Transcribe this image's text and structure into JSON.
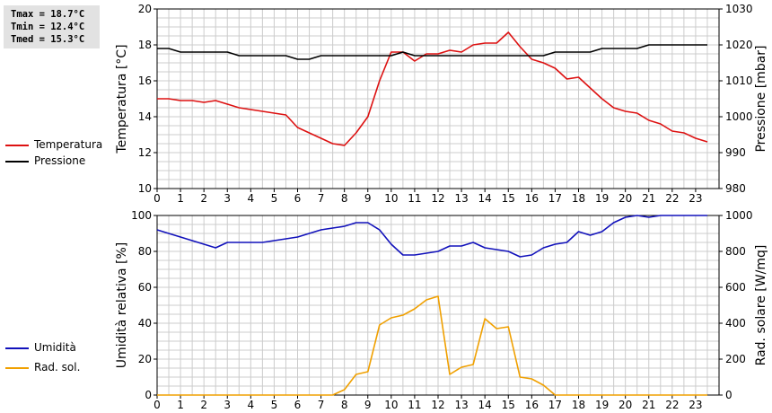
{
  "stats": {
    "tmax": "Tmax = 18.7°C",
    "tmin": "Tmin = 12.4°C",
    "tmed": "Tmed = 15.3°C"
  },
  "legends": {
    "temperatura": "Temperatura",
    "pressione": "Pressione",
    "umidita": "Umidità",
    "rad_sol": "Rad. sol."
  },
  "colors": {
    "temperatura": "#dd1111",
    "pressione": "#000000",
    "umidita": "#1111bb",
    "rad_sol": "#f0a000",
    "grid": "#cccccc"
  },
  "chart_data": [
    {
      "type": "line",
      "xlim": [
        0,
        24
      ],
      "x_ticks": [
        "0",
        "1",
        "2",
        "3",
        "4",
        "5",
        "6",
        "7",
        "8",
        "9",
        "10",
        "11",
        "12",
        "13",
        "14",
        "15",
        "16",
        "17",
        "18",
        "19",
        "20",
        "21",
        "22",
        "23"
      ],
      "ylabel": "Temperatura [°C]",
      "ylim": [
        10,
        20
      ],
      "y_ticks": [
        10,
        12,
        14,
        16,
        18,
        20
      ],
      "y2label": "Pressione [mbar]",
      "y2lim": [
        980,
        1030
      ],
      "y2_ticks": [
        980,
        990,
        1000,
        1010,
        1020,
        1030
      ],
      "grid": true,
      "series": [
        {
          "name": "Temperatura",
          "axis": "left",
          "points": [
            [
              0,
              15.0
            ],
            [
              0.5,
              15.0
            ],
            [
              1,
              14.9
            ],
            [
              1.5,
              14.9
            ],
            [
              2,
              14.8
            ],
            [
              2.5,
              14.9
            ],
            [
              3,
              14.7
            ],
            [
              3.5,
              14.5
            ],
            [
              4,
              14.4
            ],
            [
              4.5,
              14.3
            ],
            [
              5,
              14.2
            ],
            [
              5.5,
              14.1
            ],
            [
              6,
              13.4
            ],
            [
              6.5,
              13.1
            ],
            [
              7,
              12.8
            ],
            [
              7.5,
              12.5
            ],
            [
              8,
              12.4
            ],
            [
              8.5,
              13.1
            ],
            [
              9,
              14.0
            ],
            [
              9.5,
              16.0
            ],
            [
              10,
              17.6
            ],
            [
              10.5,
              17.6
            ],
            [
              11,
              17.1
            ],
            [
              11.5,
              17.5
            ],
            [
              12,
              17.5
            ],
            [
              12.5,
              17.7
            ],
            [
              13,
              17.6
            ],
            [
              13.5,
              18.0
            ],
            [
              14,
              18.1
            ],
            [
              14.5,
              18.1
            ],
            [
              15,
              18.7
            ],
            [
              15.5,
              17.9
            ],
            [
              16,
              17.2
            ],
            [
              16.5,
              17.0
            ],
            [
              17,
              16.7
            ],
            [
              17.5,
              16.1
            ],
            [
              18,
              16.2
            ],
            [
              18.5,
              15.6
            ],
            [
              19,
              15.0
            ],
            [
              19.5,
              14.5
            ],
            [
              20,
              14.3
            ],
            [
              20.5,
              14.2
            ],
            [
              21,
              13.8
            ],
            [
              21.5,
              13.6
            ],
            [
              22,
              13.2
            ],
            [
              22.5,
              13.1
            ],
            [
              23,
              12.8
            ],
            [
              23.5,
              12.6
            ]
          ]
        },
        {
          "name": "Pressione",
          "axis": "right",
          "points": [
            [
              0,
              1019
            ],
            [
              0.5,
              1019
            ],
            [
              1,
              1018
            ],
            [
              1.5,
              1018
            ],
            [
              2,
              1018
            ],
            [
              2.5,
              1018
            ],
            [
              3,
              1018
            ],
            [
              3.5,
              1017
            ],
            [
              4,
              1017
            ],
            [
              4.5,
              1017
            ],
            [
              5,
              1017
            ],
            [
              5.5,
              1017
            ],
            [
              6,
              1016
            ],
            [
              6.5,
              1016
            ],
            [
              7,
              1017
            ],
            [
              7.5,
              1017
            ],
            [
              8,
              1017
            ],
            [
              8.5,
              1017
            ],
            [
              9,
              1017
            ],
            [
              9.5,
              1017
            ],
            [
              10,
              1017
            ],
            [
              10.5,
              1018
            ],
            [
              11,
              1017
            ],
            [
              11.5,
              1017
            ],
            [
              12,
              1017
            ],
            [
              12.5,
              1017
            ],
            [
              13,
              1017
            ],
            [
              13.5,
              1017
            ],
            [
              14,
              1017
            ],
            [
              14.5,
              1017
            ],
            [
              15,
              1017
            ],
            [
              15.5,
              1017
            ],
            [
              16,
              1017
            ],
            [
              16.5,
              1017
            ],
            [
              17,
              1018
            ],
            [
              17.5,
              1018
            ],
            [
              18,
              1018
            ],
            [
              18.5,
              1018
            ],
            [
              19,
              1019
            ],
            [
              19.5,
              1019
            ],
            [
              20,
              1019
            ],
            [
              20.5,
              1019
            ],
            [
              21,
              1020
            ],
            [
              21.5,
              1020
            ],
            [
              22,
              1020
            ],
            [
              22.5,
              1020
            ],
            [
              23,
              1020
            ],
            [
              23.5,
              1020
            ]
          ]
        }
      ]
    },
    {
      "type": "line",
      "xlim": [
        0,
        24
      ],
      "x_ticks": [
        "0",
        "1",
        "2",
        "3",
        "4",
        "5",
        "6",
        "7",
        "8",
        "9",
        "10",
        "11",
        "12",
        "13",
        "14",
        "15",
        "16",
        "17",
        "18",
        "19",
        "20",
        "21",
        "22",
        "23"
      ],
      "ylabel": "Umidità relativa [%]",
      "ylim": [
        0,
        100
      ],
      "y_ticks": [
        0,
        20,
        40,
        60,
        80,
        100
      ],
      "y2label": "Rad. solare [W/mq]",
      "y2lim": [
        0,
        1000
      ],
      "y2_ticks": [
        0,
        200,
        400,
        600,
        800,
        1000
      ],
      "grid": true,
      "series": [
        {
          "name": "Umidità",
          "axis": "left",
          "points": [
            [
              0,
              92
            ],
            [
              0.5,
              90
            ],
            [
              1,
              88
            ],
            [
              1.5,
              86
            ],
            [
              2,
              84
            ],
            [
              2.5,
              82
            ],
            [
              3,
              85
            ],
            [
              3.5,
              85
            ],
            [
              4,
              85
            ],
            [
              4.5,
              85
            ],
            [
              5,
              86
            ],
            [
              5.5,
              87
            ],
            [
              6,
              88
            ],
            [
              6.5,
              90
            ],
            [
              7,
              92
            ],
            [
              7.5,
              93
            ],
            [
              8,
              94
            ],
            [
              8.5,
              96
            ],
            [
              9,
              96
            ],
            [
              9.5,
              92
            ],
            [
              10,
              84
            ],
            [
              10.5,
              78
            ],
            [
              11,
              78
            ],
            [
              11.5,
              79
            ],
            [
              12,
              80
            ],
            [
              12.5,
              83
            ],
            [
              13,
              83
            ],
            [
              13.5,
              85
            ],
            [
              14,
              82
            ],
            [
              14.5,
              81
            ],
            [
              15,
              80
            ],
            [
              15.5,
              77
            ],
            [
              16,
              78
            ],
            [
              16.5,
              82
            ],
            [
              17,
              84
            ],
            [
              17.5,
              85
            ],
            [
              18,
              91
            ],
            [
              18.5,
              89
            ],
            [
              19,
              91
            ],
            [
              19.5,
              96
            ],
            [
              20,
              99
            ],
            [
              20.5,
              100
            ],
            [
              21,
              99
            ],
            [
              21.5,
              100
            ],
            [
              22,
              100
            ],
            [
              22.5,
              100
            ],
            [
              23,
              100
            ],
            [
              23.5,
              100
            ]
          ]
        },
        {
          "name": "Rad. sol.",
          "axis": "right",
          "points": [
            [
              0,
              0
            ],
            [
              0.5,
              0
            ],
            [
              1,
              0
            ],
            [
              1.5,
              0
            ],
            [
              2,
              0
            ],
            [
              2.5,
              0
            ],
            [
              3,
              0
            ],
            [
              3.5,
              0
            ],
            [
              4,
              0
            ],
            [
              4.5,
              0
            ],
            [
              5,
              0
            ],
            [
              5.5,
              0
            ],
            [
              6,
              0
            ],
            [
              6.5,
              0
            ],
            [
              7,
              0
            ],
            [
              7.5,
              0
            ],
            [
              8,
              30
            ],
            [
              8.5,
              115
            ],
            [
              9,
              130
            ],
            [
              9.5,
              390
            ],
            [
              10,
              430
            ],
            [
              10.5,
              445
            ],
            [
              11,
              480
            ],
            [
              11.5,
              530
            ],
            [
              12,
              550
            ],
            [
              12.5,
              115
            ],
            [
              13,
              155
            ],
            [
              13.5,
              170
            ],
            [
              14,
              425
            ],
            [
              14.5,
              370
            ],
            [
              15,
              380
            ],
            [
              15.5,
              100
            ],
            [
              16,
              90
            ],
            [
              16.5,
              55
            ],
            [
              17,
              0
            ],
            [
              17.5,
              0
            ],
            [
              18,
              0
            ],
            [
              18.5,
              0
            ],
            [
              19,
              0
            ],
            [
              19.5,
              0
            ],
            [
              20,
              0
            ],
            [
              20.5,
              0
            ],
            [
              21,
              0
            ],
            [
              21.5,
              0
            ],
            [
              22,
              0
            ],
            [
              22.5,
              0
            ],
            [
              23,
              0
            ],
            [
              23.5,
              0
            ]
          ]
        }
      ]
    }
  ]
}
